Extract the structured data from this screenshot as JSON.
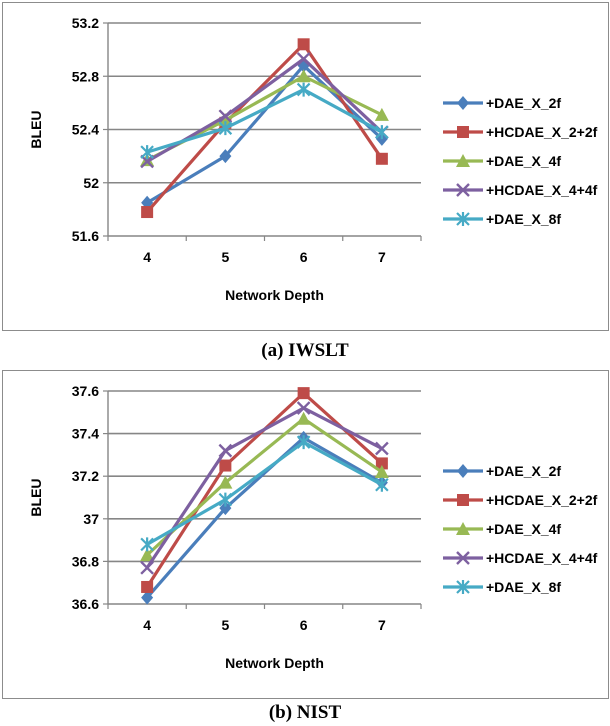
{
  "colors": {
    "+DAE_X_2f": "#4a7ebb",
    "+HCDAE_X_2+2f": "#be4b48",
    "+DAE_X_4f": "#98b954",
    "+HCDAE_X_4+4f": "#7d60a0",
    "+DAE_X_8f": "#46aac5",
    "grid": "#868686"
  },
  "markers": {
    "+DAE_X_2f": "diamond",
    "+HCDAE_X_2+2f": "square",
    "+DAE_X_4f": "triangle",
    "+HCDAE_X_4+4f": "x",
    "+DAE_X_8f": "star"
  },
  "captions": [
    "(a) IWSLT",
    "(b) NIST"
  ],
  "chart_data": [
    {
      "type": "line",
      "title": "",
      "xlabel": "Network Depth",
      "ylabel": "BLEU",
      "categories": [
        "4",
        "5",
        "6",
        "7"
      ],
      "ylim": [
        51.6,
        53.2
      ],
      "yticks": [
        "51.6",
        "52",
        "52.4",
        "52.8",
        "53.2"
      ],
      "grid": true,
      "legend": "right",
      "series": [
        {
          "name": "+DAE_X_2f",
          "values": [
            51.85,
            52.2,
            52.88,
            52.33
          ]
        },
        {
          "name": "+HCDAE_X_2+2f",
          "values": [
            51.78,
            52.45,
            53.04,
            52.18
          ]
        },
        {
          "name": "+DAE_X_4f",
          "values": [
            52.17,
            52.47,
            52.8,
            52.51
          ]
        },
        {
          "name": "+HCDAE_X_4+4f",
          "values": [
            52.16,
            52.5,
            52.93,
            52.38
          ]
        },
        {
          "name": "+DAE_X_8f",
          "values": [
            52.23,
            52.41,
            52.7,
            52.38
          ]
        }
      ]
    },
    {
      "type": "line",
      "title": "",
      "xlabel": "Network Depth",
      "ylabel": "BLEU",
      "categories": [
        "4",
        "5",
        "6",
        "7"
      ],
      "ylim": [
        36.6,
        37.6
      ],
      "yticks": [
        "36.6",
        "36.8",
        "37",
        "37.2",
        "37.4",
        "37.6"
      ],
      "grid": true,
      "legend": "right",
      "series": [
        {
          "name": "+DAE_X_2f",
          "values": [
            36.63,
            37.05,
            37.38,
            37.17
          ]
        },
        {
          "name": "+HCDAE_X_2+2f",
          "values": [
            36.68,
            37.25,
            37.59,
            37.26
          ]
        },
        {
          "name": "+DAE_X_4f",
          "values": [
            36.83,
            37.17,
            37.47,
            37.22
          ]
        },
        {
          "name": "+HCDAE_X_4+4f",
          "values": [
            36.77,
            37.32,
            37.52,
            37.33
          ]
        },
        {
          "name": "+DAE_X_8f",
          "values": [
            36.88,
            37.09,
            37.36,
            37.16
          ]
        }
      ]
    }
  ]
}
